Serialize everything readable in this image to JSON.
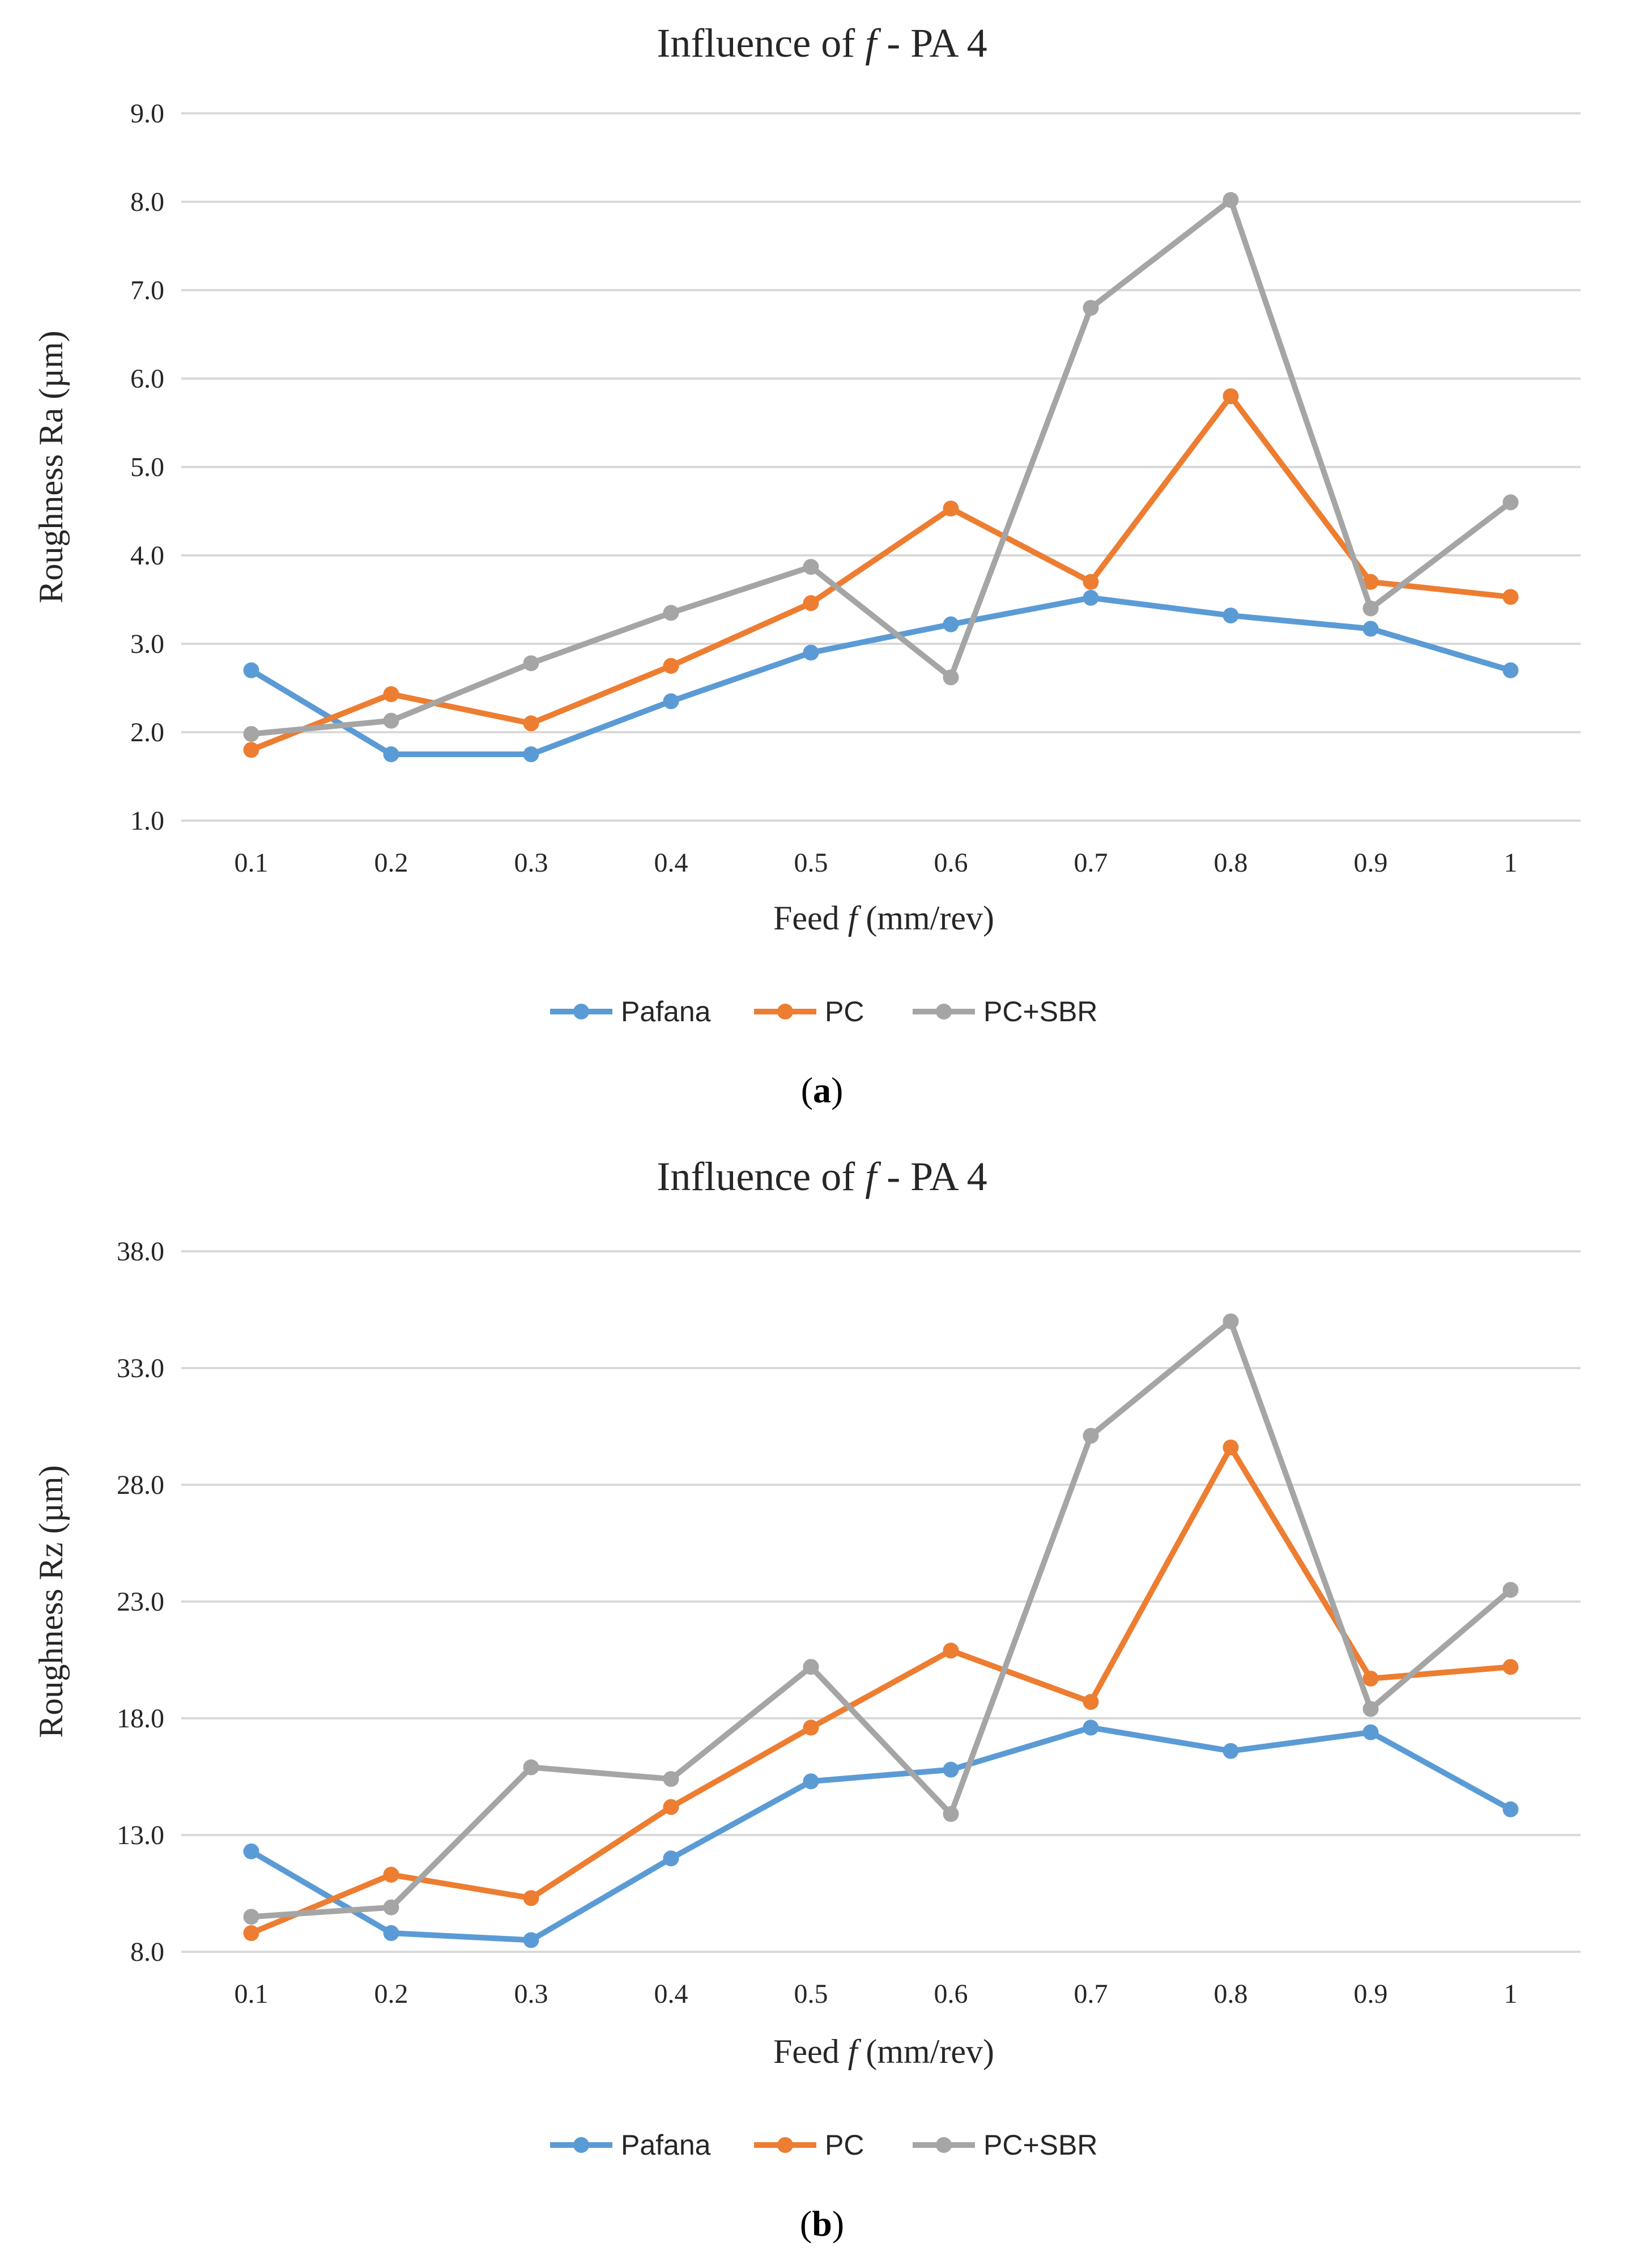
{
  "colors": {
    "Pafana": "#5b9bd5",
    "PC": "#ed7d31",
    "PC+SBR": "#a5a5a5"
  },
  "chart_data": [
    {
      "id": "a",
      "type": "line",
      "title_prefix": "Influence of ",
      "title_var": "f",
      "title_suffix": " - PA 4",
      "xlabel_prefix": "Feed ",
      "xlabel_var": "f",
      "xlabel_suffix": " (mm/rev)",
      "ylabel": "Roughness Ra (µm)",
      "caption": "a",
      "categories": [
        "0.1",
        "0.2",
        "0.3",
        "0.4",
        "0.5",
        "0.6",
        "0.7",
        "0.8",
        "0.9",
        "1"
      ],
      "yticks": [
        "1.0",
        "2.0",
        "3.0",
        "4.0",
        "5.0",
        "6.0",
        "7.0",
        "8.0",
        "9.0"
      ],
      "ylim": [
        1.0,
        9.0
      ],
      "legend_position": "bottom",
      "series": [
        {
          "name": "Pafana",
          "values": [
            2.7,
            1.75,
            1.75,
            2.35,
            2.9,
            3.22,
            3.52,
            3.32,
            3.17,
            2.7
          ]
        },
        {
          "name": "PC",
          "values": [
            1.8,
            2.43,
            2.1,
            2.75,
            3.46,
            4.53,
            3.7,
            5.8,
            3.7,
            3.53
          ]
        },
        {
          "name": "PC+SBR",
          "values": [
            1.98,
            2.13,
            2.78,
            3.35,
            3.87,
            2.62,
            6.8,
            8.02,
            3.4,
            4.6
          ]
        }
      ]
    },
    {
      "id": "b",
      "type": "line",
      "title_prefix": "Influence of ",
      "title_var": "f",
      "title_suffix": " - PA 4",
      "xlabel_prefix": "Feed ",
      "xlabel_var": "f",
      "xlabel_suffix": " (mm/rev)",
      "ylabel": "Roughness Rz (µm)",
      "caption": "b",
      "categories": [
        "0.1",
        "0.2",
        "0.3",
        "0.4",
        "0.5",
        "0.6",
        "0.7",
        "0.8",
        "0.9",
        "1"
      ],
      "yticks": [
        "8.0",
        "13.0",
        "18.0",
        "23.0",
        "28.0",
        "33.0",
        "38.0"
      ],
      "ylim": [
        8.0,
        38.0
      ],
      "legend_position": "bottom",
      "series": [
        {
          "name": "Pafana",
          "values": [
            12.3,
            8.8,
            8.5,
            12.0,
            15.3,
            15.8,
            17.6,
            16.6,
            17.4,
            14.1
          ]
        },
        {
          "name": "PC",
          "values": [
            8.8,
            11.3,
            10.3,
            14.2,
            17.6,
            20.9,
            18.7,
            29.6,
            19.7,
            20.2
          ]
        },
        {
          "name": "PC+SBR",
          "values": [
            9.5,
            9.9,
            15.9,
            15.4,
            20.2,
            13.9,
            30.1,
            35.0,
            18.4,
            23.5
          ]
        }
      ]
    }
  ]
}
